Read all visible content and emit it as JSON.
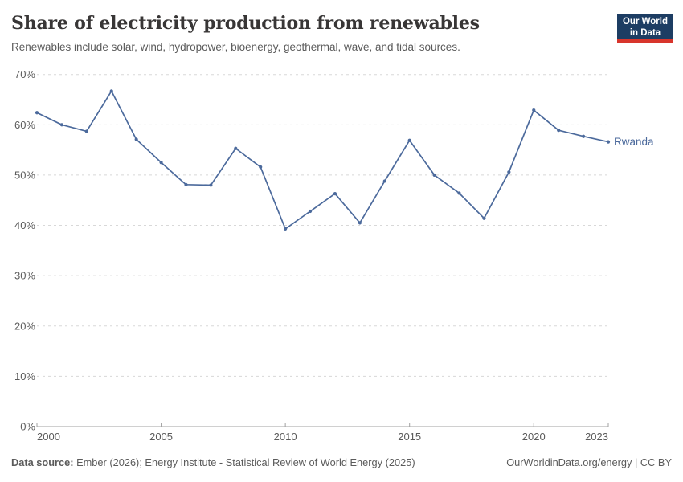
{
  "header": {
    "logo": {
      "line1": "Our World",
      "line2": "in Data"
    }
  },
  "footer": {
    "datasource_label": "Data source:",
    "datasource_text": " Ember (2026); Energy Institute - Statistical Review of World Energy (2025)",
    "credit": "OurWorldinData.org/energy | CC BY"
  },
  "colors": {
    "series_blue": "#4c6a9c",
    "grid": "#d8d8d8",
    "axis": "#a1a1a1",
    "tick_text": "#5b5b5b",
    "title_text": "#383636",
    "logo_bg": "#1d3d63",
    "logo_accent": "#d8352c"
  },
  "chart_data": {
    "type": "line",
    "title": "Share of electricity production from renewables",
    "subtitle": "Renewables include solar, wind, hydropower, bioenergy, geothermal, wave, and tidal sources.",
    "xlabel": "",
    "ylabel": "",
    "x": [
      2000,
      2001,
      2002,
      2003,
      2004,
      2005,
      2006,
      2007,
      2008,
      2009,
      2010,
      2011,
      2012,
      2013,
      2014,
      2015,
      2016,
      2017,
      2018,
      2019,
      2020,
      2021,
      2022,
      2023
    ],
    "series": [
      {
        "name": "Rwanda",
        "color": "#4c6a9c",
        "values": [
          62.4,
          60.0,
          58.7,
          66.7,
          57.1,
          52.5,
          48.1,
          48.0,
          55.3,
          51.6,
          39.3,
          42.8,
          46.3,
          40.5,
          48.8,
          56.9,
          50.0,
          46.4,
          41.4,
          50.6,
          62.9,
          58.9,
          57.7,
          56.6
        ]
      }
    ],
    "ylim": [
      0,
      70
    ],
    "yticks": [
      0,
      10,
      20,
      30,
      40,
      50,
      60,
      70
    ],
    "ytick_suffix": "%",
    "xticks": [
      2000,
      2005,
      2010,
      2015,
      2020,
      2023
    ],
    "grid": true,
    "legend": "end-of-line-label"
  }
}
